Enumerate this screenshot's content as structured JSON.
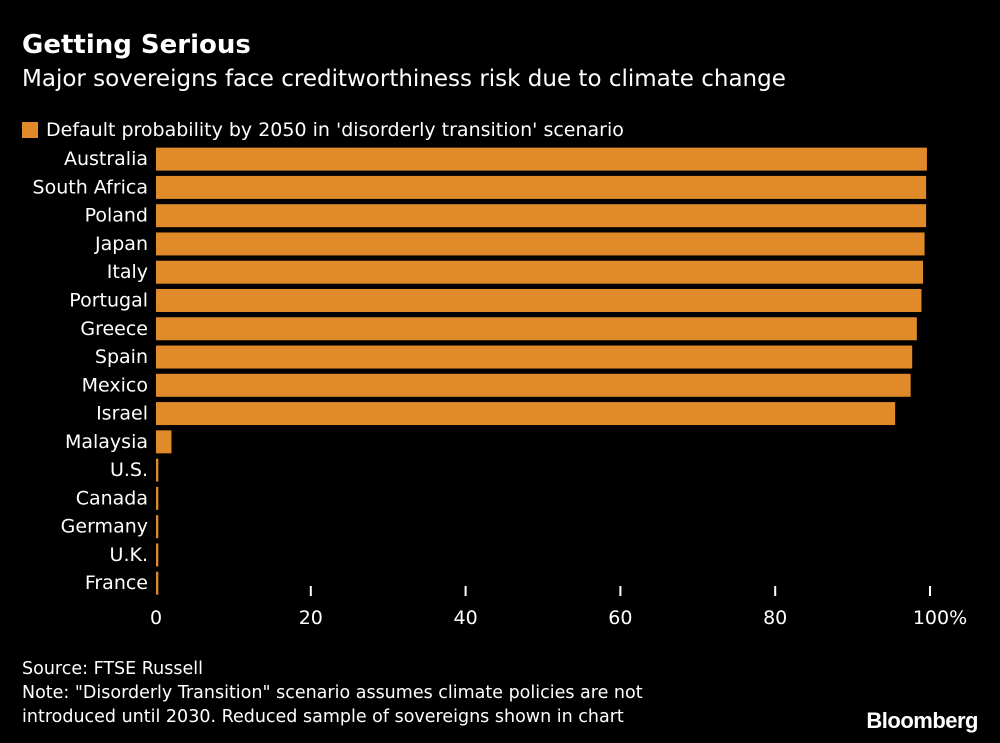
{
  "header": {
    "title": "Getting Serious",
    "subtitle": "Major sovereigns face creditworthiness risk due to climate change"
  },
  "legend": {
    "label": "Default probability by 2050 in 'disorderly transition' scenario"
  },
  "chart_data": {
    "type": "bar",
    "orientation": "horizontal",
    "categories": [
      "Australia",
      "South Africa",
      "Poland",
      "Japan",
      "Italy",
      "Portugal",
      "Greece",
      "Spain",
      "Mexico",
      "Israel",
      "Malaysia",
      "U.S.",
      "Canada",
      "Germany",
      "U.K.",
      "France"
    ],
    "series": [
      {
        "name": "Default probability by 2050 in 'disorderly transition' scenario",
        "values": [
          99.6,
          99.5,
          99.5,
          99.3,
          99.1,
          98.9,
          98.3,
          97.7,
          97.5,
          95.5,
          2.0,
          0.3,
          0.3,
          0.3,
          0.3,
          0.3
        ]
      }
    ],
    "xlim": [
      0,
      100
    ],
    "xticks": [
      "0",
      "20",
      "40",
      "60",
      "80",
      "100%"
    ],
    "grid": false,
    "legend_position": "top-left",
    "colors": {
      "bar": "#E08A2A",
      "background": "#000000",
      "text": "#FFFFFF"
    }
  },
  "footer": {
    "source": "Source: FTSE Russell",
    "note_line1": "Note: \"Disorderly Transition\" scenario assumes climate policies are not",
    "note_line2": "introduced until 2030. Reduced sample of sovereigns shown in chart",
    "brand": "Bloomberg"
  }
}
